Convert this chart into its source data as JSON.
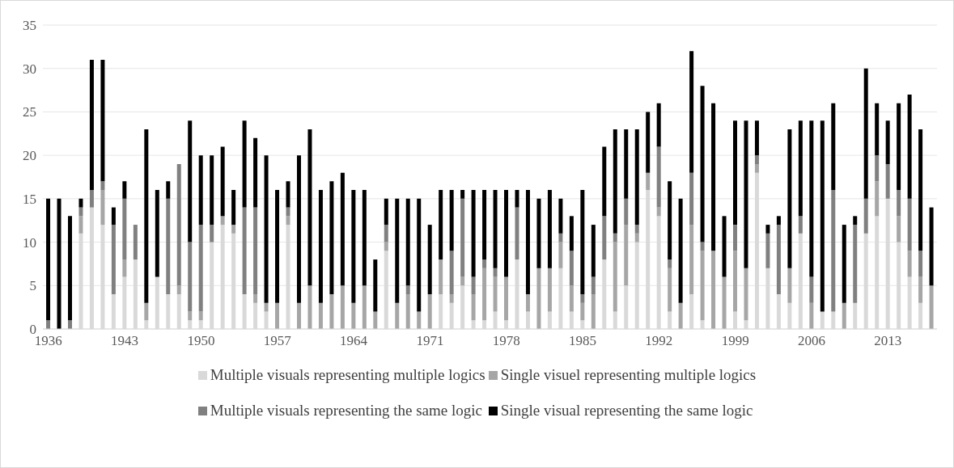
{
  "chart_data": {
    "type": "bar",
    "stacked": true,
    "categories": [
      "1936",
      null,
      null,
      null,
      null,
      null,
      null,
      "1943",
      null,
      null,
      null,
      null,
      null,
      null,
      "1950",
      null,
      null,
      null,
      null,
      null,
      null,
      "1957",
      null,
      null,
      null,
      null,
      null,
      null,
      "1964",
      null,
      null,
      null,
      null,
      null,
      null,
      "1971",
      null,
      null,
      null,
      null,
      null,
      null,
      "1978",
      null,
      null,
      null,
      null,
      null,
      null,
      "1985",
      null,
      null,
      null,
      null,
      null,
      null,
      "1992",
      null,
      null,
      null,
      null,
      null,
      null,
      "1999",
      null,
      null,
      null,
      null,
      null,
      null,
      "2006",
      null,
      null,
      null,
      null,
      null,
      null,
      "2013",
      null,
      null,
      null,
      null
    ],
    "series": [
      {
        "name": "Multiple visuals representing multiple logics",
        "color": "#d9d9d9",
        "values": [
          0,
          0,
          0,
          11,
          14,
          12,
          4,
          6,
          8,
          1,
          6,
          4,
          4,
          1,
          1,
          10,
          12,
          11,
          4,
          3,
          2,
          0,
          12,
          0,
          0,
          0,
          0,
          0,
          0,
          0,
          0,
          9,
          0,
          0,
          0,
          0,
          4,
          3,
          5,
          1,
          1,
          2,
          1,
          8,
          2,
          0,
          2,
          7,
          2,
          1,
          0,
          8,
          2,
          5,
          10,
          16,
          13,
          2,
          0,
          4,
          1,
          0,
          0,
          2,
          1,
          18,
          7,
          4,
          3,
          11,
          0,
          2,
          2,
          0,
          3,
          11,
          13,
          15,
          10,
          6,
          3,
          0
        ]
      },
      {
        "name": "Single visuel representing multiple logics",
        "color": "#a6a6a6",
        "values": [
          0,
          0,
          0,
          2,
          0,
          4,
          0,
          2,
          0,
          2,
          0,
          0,
          1,
          1,
          1,
          0,
          1,
          1,
          0,
          1,
          1,
          3,
          1,
          3,
          5,
          3,
          4,
          5,
          3,
          5,
          2,
          1,
          3,
          4,
          2,
          4,
          4,
          1,
          1,
          3,
          6,
          4,
          5,
          0,
          2,
          7,
          5,
          3,
          3,
          2,
          4,
          0,
          8,
          7,
          1,
          2,
          1,
          5,
          3,
          8,
          8,
          9,
          6,
          7,
          6,
          1,
          0,
          0,
          4,
          0,
          3,
          0,
          0,
          3,
          0,
          0,
          4,
          0,
          3,
          3,
          3,
          5
        ]
      },
      {
        "name": "Multiple visuals representing the same logic",
        "color": "#808080",
        "values": [
          1,
          0,
          1,
          1,
          2,
          1,
          8,
          7,
          4,
          0,
          0,
          11,
          14,
          8,
          10,
          2,
          0,
          0,
          10,
          10,
          0,
          0,
          1,
          0,
          0,
          0,
          0,
          0,
          0,
          0,
          0,
          2,
          0,
          1,
          0,
          0,
          0,
          5,
          9,
          2,
          1,
          1,
          0,
          6,
          0,
          0,
          0,
          1,
          4,
          1,
          2,
          5,
          1,
          3,
          1,
          0,
          7,
          1,
          0,
          6,
          1,
          0,
          0,
          3,
          0,
          1,
          4,
          8,
          0,
          2,
          3,
          0,
          14,
          0,
          9,
          4,
          3,
          4,
          3,
          6,
          3,
          0
        ]
      },
      {
        "name": "Single visual representing the same logic",
        "color": "#000000",
        "values": [
          14,
          15,
          12,
          1,
          15,
          14,
          2,
          2,
          0,
          20,
          10,
          2,
          0,
          14,
          8,
          8,
          8,
          4,
          10,
          8,
          17,
          13,
          3,
          17,
          18,
          13,
          13,
          13,
          13,
          11,
          6,
          3,
          12,
          10,
          13,
          8,
          8,
          7,
          1,
          10,
          8,
          9,
          10,
          2,
          12,
          8,
          9,
          4,
          4,
          12,
          6,
          8,
          12,
          8,
          11,
          7,
          5,
          9,
          12,
          14,
          18,
          17,
          7,
          12,
          17,
          4,
          1,
          1,
          16,
          11,
          18,
          22,
          10,
          9,
          1,
          15,
          6,
          5,
          10,
          12,
          14,
          9
        ]
      }
    ],
    "ylim": [
      0,
      35
    ],
    "yticks": [
      0,
      5,
      10,
      15,
      20,
      25,
      30,
      35
    ],
    "grid": "y",
    "legend": "bottom"
  }
}
